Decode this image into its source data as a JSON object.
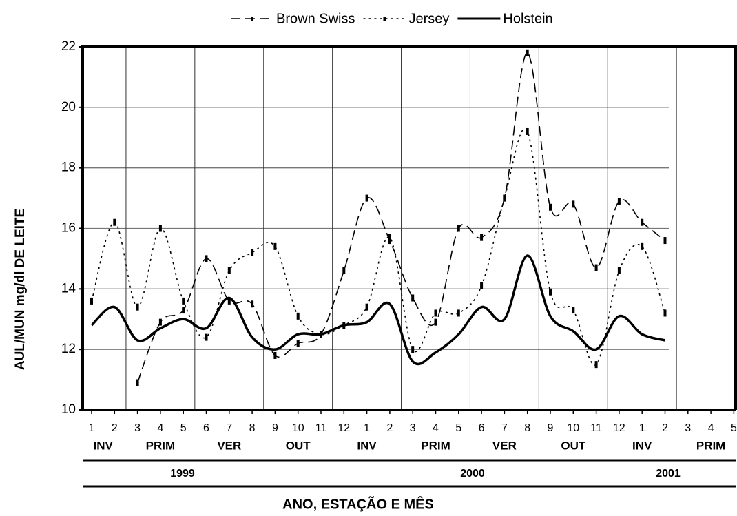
{
  "chart_data": {
    "type": "line",
    "y_label": "AUL/MUN mg/dl  DE LEITE",
    "x_label": "ANO, ESTAÇÃO E MÊS",
    "categories": [
      "1",
      "2",
      "3",
      "4",
      "5",
      "6",
      "7",
      "8",
      "9",
      "10",
      "11",
      "12",
      "1",
      "2",
      "3",
      "4",
      "5",
      "6",
      "7",
      "8",
      "9",
      "10",
      "11",
      "12",
      "1",
      "2",
      "3",
      "4",
      "5"
    ],
    "seasons": [
      "INV",
      "PRIM",
      "VER",
      "OUT",
      "INV",
      "PRIM",
      "VER",
      "OUT",
      "INV",
      "PRIM"
    ],
    "years": [
      "1999",
      "2000",
      "2001"
    ],
    "ylim": [
      10,
      22
    ],
    "yticks": [
      10,
      12,
      14,
      16,
      18,
      20,
      22
    ],
    "grid": true,
    "series": [
      {
        "name": "Brown Swiss",
        "color": "#000000",
        "style": "dashed",
        "values": [
          null,
          null,
          10.9,
          12.9,
          13.3,
          15.0,
          13.6,
          13.5,
          11.8,
          12.2,
          12.5,
          14.6,
          17.0,
          15.6,
          13.7,
          12.9,
          16.0,
          15.7,
          17.0,
          21.8,
          16.7,
          16.8,
          14.7,
          16.9,
          16.2,
          15.6,
          null,
          null,
          null
        ]
      },
      {
        "name": "Jersey",
        "color": "#000000",
        "style": "dotted",
        "values": [
          13.6,
          16.2,
          13.4,
          16.0,
          13.6,
          12.4,
          14.6,
          15.2,
          15.4,
          13.1,
          12.5,
          12.8,
          13.4,
          15.7,
          12.0,
          13.2,
          13.2,
          14.1,
          17.0,
          19.2,
          13.9,
          13.3,
          11.5,
          14.6,
          15.4,
          13.2,
          null,
          null,
          null
        ]
      },
      {
        "name": "Holstein",
        "color": "#000000",
        "style": "solid",
        "values": [
          12.8,
          13.4,
          12.3,
          12.7,
          13.0,
          12.7,
          13.7,
          12.4,
          12.0,
          12.5,
          12.5,
          12.8,
          12.9,
          13.5,
          11.6,
          11.9,
          12.5,
          13.4,
          13.0,
          15.1,
          13.1,
          12.6,
          12.0,
          13.1,
          12.5,
          12.3,
          null,
          null,
          null
        ]
      }
    ]
  }
}
